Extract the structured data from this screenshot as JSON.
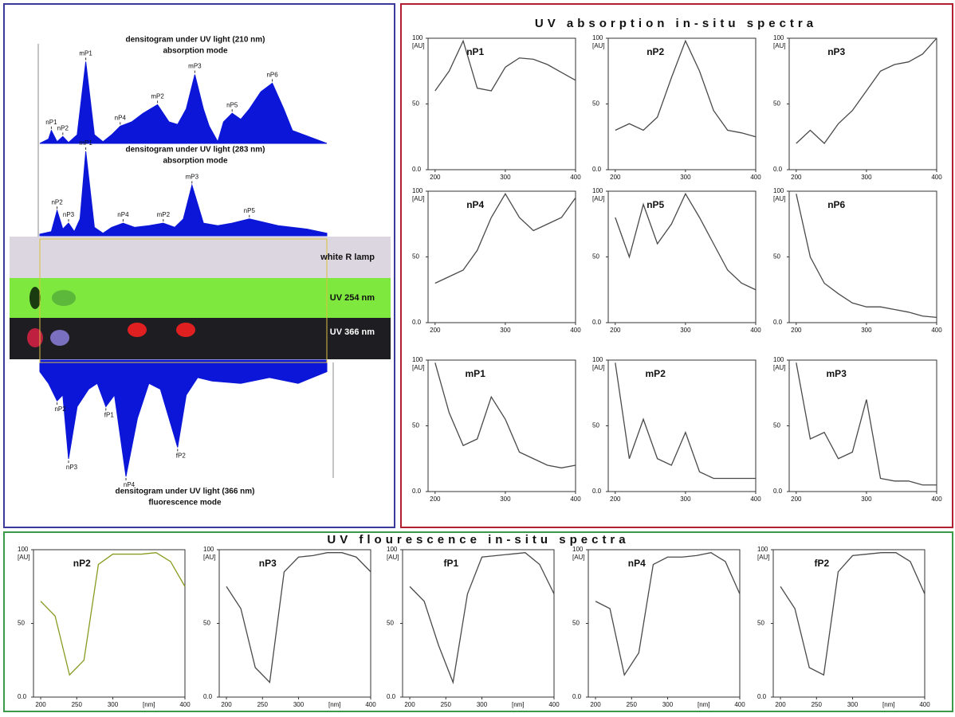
{
  "section_titles": {
    "absorption": "UV absorption in-situ spectra",
    "fluorescence": "UV flourescence in-situ spectra"
  },
  "plate": {
    "rows": [
      "white R lamp",
      "UV 254 nm",
      "UV 366 nm"
    ]
  },
  "chart_data": [
    {
      "type": "area",
      "title": "densitogram under UV light (210 nm)",
      "subtitle": "absorption mode",
      "color": "#0b16d8",
      "direction": "up",
      "xlim": [
        0,
        100
      ],
      "ylim": [
        0,
        100
      ],
      "x": [
        0,
        3,
        4,
        6,
        8,
        10,
        13,
        16,
        19,
        22,
        25,
        28,
        32,
        36,
        41,
        45,
        48,
        51,
        54,
        57,
        59,
        62,
        64,
        67,
        70,
        73,
        77,
        81,
        85,
        88,
        92,
        96,
        100
      ],
      "values": [
        0,
        5,
        15,
        2,
        8,
        1,
        10,
        95,
        10,
        2,
        10,
        20,
        25,
        35,
        45,
        25,
        22,
        40,
        80,
        40,
        20,
        2,
        25,
        35,
        28,
        40,
        60,
        70,
        40,
        15,
        10,
        5,
        0
      ],
      "peaks": [
        {
          "label": "nP1",
          "x": 4
        },
        {
          "label": "nP2",
          "x": 8
        },
        {
          "label": "mP1",
          "x": 16
        },
        {
          "label": "nP4",
          "x": 28
        },
        {
          "label": "mP2",
          "x": 41
        },
        {
          "label": "mP3",
          "x": 54
        },
        {
          "label": "nP5",
          "x": 67
        },
        {
          "label": "nP6",
          "x": 81
        }
      ]
    },
    {
      "type": "area",
      "title": "densitogram under UV light (283 nm)",
      "subtitle": "absorption mode",
      "color": "#0b16d8",
      "direction": "up",
      "xlim": [
        0,
        100
      ],
      "ylim": [
        0,
        100
      ],
      "x": [
        0,
        4,
        6,
        8,
        10,
        12,
        14,
        16,
        19,
        22,
        25,
        29,
        33,
        38,
        43,
        47,
        50,
        53,
        57,
        62,
        67,
        73,
        78,
        83,
        88,
        93,
        100
      ],
      "values": [
        2,
        5,
        30,
        8,
        15,
        5,
        20,
        100,
        10,
        3,
        10,
        15,
        10,
        12,
        15,
        10,
        20,
        60,
        15,
        12,
        15,
        20,
        16,
        12,
        10,
        8,
        3
      ],
      "peaks": [
        {
          "label": "nP2",
          "x": 6
        },
        {
          "label": "nP3",
          "x": 10
        },
        {
          "label": "mP1",
          "x": 16
        },
        {
          "label": "nP4",
          "x": 29
        },
        {
          "label": "mP2",
          "x": 43
        },
        {
          "label": "mP3",
          "x": 53
        },
        {
          "label": "nP5",
          "x": 73
        }
      ]
    },
    {
      "type": "area",
      "title": "densitogram under UV light (366 nm)",
      "subtitle": "fluorescence mode",
      "color": "#0b16d8",
      "direction": "down",
      "xlim": [
        0,
        100
      ],
      "ylim": [
        0,
        100
      ],
      "x": [
        0,
        3,
        6,
        8,
        10,
        13,
        17,
        20,
        23,
        26,
        30,
        34,
        38,
        42,
        45,
        48,
        51,
        55,
        60,
        70,
        80,
        90,
        100
      ],
      "values": [
        10,
        20,
        35,
        30,
        85,
        40,
        25,
        20,
        40,
        30,
        100,
        50,
        20,
        25,
        50,
        75,
        30,
        15,
        18,
        20,
        15,
        20,
        10
      ],
      "peaks": [
        {
          "label": "nP2",
          "x": 6
        },
        {
          "label": "nP3",
          "x": 10
        },
        {
          "label": "fP1",
          "x": 23
        },
        {
          "label": "nP4",
          "x": 30
        },
        {
          "label": "fP2",
          "x": 48
        }
      ]
    },
    {
      "type": "line",
      "title": "nP1",
      "y_label": "[AU]",
      "xlim": [
        190,
        400
      ],
      "xticks": [
        200,
        300,
        400
      ],
      "ylim": [
        0,
        100
      ],
      "yticks": [
        {
          "value": 0,
          "label": "0.0"
        },
        50,
        100
      ],
      "x": [
        200,
        220,
        240,
        260,
        280,
        300,
        320,
        340,
        360,
        380,
        400
      ],
      "series": [
        {
          "color": "#4a4a4a",
          "values": [
            60,
            75,
            98,
            62,
            60,
            78,
            85,
            84,
            80,
            74,
            68
          ]
        }
      ]
    },
    {
      "type": "line",
      "title": "nP2",
      "y_label": "[AU]",
      "xlim": [
        190,
        400
      ],
      "xticks": [
        200,
        300,
        400
      ],
      "ylim": [
        0,
        100
      ],
      "yticks": [
        {
          "value": 0,
          "label": "0.0"
        },
        50,
        100
      ],
      "x": [
        200,
        220,
        240,
        260,
        280,
        300,
        320,
        340,
        360,
        380,
        400
      ],
      "series": [
        {
          "color": "#4a4a4a",
          "values": [
            30,
            35,
            30,
            40,
            70,
            98,
            75,
            45,
            30,
            28,
            25
          ]
        }
      ]
    },
    {
      "type": "line",
      "title": "nP3",
      "y_label": "[AU]",
      "xlim": [
        190,
        400
      ],
      "xticks": [
        200,
        300,
        400
      ],
      "ylim": [
        0,
        100
      ],
      "yticks": [
        {
          "value": 0,
          "label": "0.0"
        },
        50,
        100
      ],
      "x": [
        200,
        220,
        240,
        260,
        280,
        300,
        320,
        340,
        360,
        380,
        400
      ],
      "series": [
        {
          "color": "#4a4a4a",
          "values": [
            20,
            30,
            20,
            35,
            45,
            60,
            75,
            80,
            82,
            88,
            100
          ]
        }
      ]
    },
    {
      "type": "line",
      "title": "nP4",
      "y_label": "[AU]",
      "xlim": [
        190,
        400
      ],
      "xticks": [
        200,
        300,
        400
      ],
      "ylim": [
        0,
        100
      ],
      "yticks": [
        {
          "value": 0,
          "label": "0.0"
        },
        50,
        100
      ],
      "x": [
        200,
        220,
        240,
        260,
        280,
        300,
        320,
        340,
        360,
        380,
        400
      ],
      "series": [
        {
          "color": "#4a4a4a",
          "values": [
            30,
            35,
            40,
            55,
            80,
            98,
            80,
            70,
            75,
            80,
            95
          ]
        }
      ]
    },
    {
      "type": "line",
      "title": "nP5",
      "y_label": "[AU]",
      "xlim": [
        190,
        400
      ],
      "xticks": [
        200,
        300,
        400
      ],
      "ylim": [
        0,
        100
      ],
      "yticks": [
        {
          "value": 0,
          "label": "0.0"
        },
        50,
        100
      ],
      "x": [
        200,
        220,
        240,
        260,
        280,
        300,
        320,
        340,
        360,
        380,
        400
      ],
      "series": [
        {
          "color": "#4a4a4a",
          "values": [
            80,
            50,
            90,
            60,
            75,
            98,
            80,
            60,
            40,
            30,
            25
          ]
        }
      ]
    },
    {
      "type": "line",
      "title": "nP6",
      "y_label": "[AU]",
      "xlim": [
        190,
        400
      ],
      "xticks": [
        200,
        300,
        400
      ],
      "ylim": [
        0,
        100
      ],
      "yticks": [
        {
          "value": 0,
          "label": "0.0"
        },
        50,
        100
      ],
      "x": [
        200,
        220,
        240,
        260,
        280,
        300,
        320,
        340,
        360,
        380,
        400
      ],
      "series": [
        {
          "color": "#4a4a4a",
          "values": [
            98,
            50,
            30,
            22,
            15,
            12,
            12,
            10,
            8,
            5,
            4
          ]
        }
      ]
    },
    {
      "type": "line",
      "title": "mP1",
      "y_label": "[AU]",
      "xlim": [
        190,
        400
      ],
      "xticks": [
        200,
        300,
        400
      ],
      "ylim": [
        0,
        100
      ],
      "yticks": [
        {
          "value": 0,
          "label": "0.0"
        },
        50,
        100
      ],
      "x": [
        200,
        220,
        240,
        260,
        280,
        300,
        320,
        340,
        360,
        380,
        400
      ],
      "series": [
        {
          "color": "#4a4a4a",
          "values": [
            98,
            60,
            35,
            40,
            72,
            55,
            30,
            25,
            20,
            18,
            20
          ]
        }
      ]
    },
    {
      "type": "line",
      "title": "mP2",
      "y_label": "[AU]",
      "xlim": [
        190,
        400
      ],
      "xticks": [
        200,
        300,
        400
      ],
      "ylim": [
        0,
        100
      ],
      "yticks": [
        {
          "value": 0,
          "label": "0.0"
        },
        50,
        100
      ],
      "x": [
        200,
        220,
        240,
        260,
        280,
        300,
        320,
        340,
        360,
        380,
        400
      ],
      "series": [
        {
          "color": "#4a4a4a",
          "values": [
            98,
            25,
            55,
            25,
            20,
            45,
            15,
            10,
            10,
            10,
            10
          ]
        }
      ]
    },
    {
      "type": "line",
      "title": "mP3",
      "y_label": "[AU]",
      "xlim": [
        190,
        400
      ],
      "xticks": [
        200,
        300,
        400
      ],
      "ylim": [
        0,
        100
      ],
      "yticks": [
        {
          "value": 0,
          "label": "0.0"
        },
        50,
        100
      ],
      "x": [
        200,
        220,
        240,
        260,
        280,
        300,
        320,
        340,
        360,
        380,
        400
      ],
      "series": [
        {
          "color": "#4a4a4a",
          "values": [
            98,
            40,
            45,
            25,
            30,
            70,
            10,
            8,
            8,
            5,
            5
          ]
        }
      ]
    },
    {
      "type": "line",
      "title": "nP2",
      "y_label": "[AU]",
      "x_label": "[nm]",
      "xlim": [
        190,
        400
      ],
      "xticks": [
        200,
        250,
        300,
        400
      ],
      "ylim": [
        0,
        100
      ],
      "yticks": [
        {
          "value": 0,
          "label": "0.0"
        },
        50,
        100
      ],
      "x": [
        200,
        220,
        240,
        260,
        280,
        300,
        320,
        340,
        360,
        380,
        400
      ],
      "series": [
        {
          "color": "#8a9a20",
          "values": [
            65,
            55,
            15,
            25,
            90,
            97,
            97,
            97,
            98,
            92,
            75
          ]
        }
      ]
    },
    {
      "type": "line",
      "title": "nP3",
      "y_label": "[AU]",
      "x_label": "[nm]",
      "xlim": [
        190,
        400
      ],
      "xticks": [
        200,
        250,
        300,
        400
      ],
      "ylim": [
        0,
        100
      ],
      "yticks": [
        {
          "value": 0,
          "label": "0.0"
        },
        50,
        100
      ],
      "x": [
        200,
        220,
        240,
        260,
        280,
        300,
        320,
        340,
        360,
        380,
        400
      ],
      "series": [
        {
          "color": "#4a4a4a",
          "values": [
            75,
            60,
            20,
            10,
            85,
            95,
            96,
            98,
            98,
            95,
            85
          ]
        }
      ]
    },
    {
      "type": "line",
      "title": "fP1",
      "y_label": "[AU]",
      "x_label": "[nm]",
      "xlim": [
        190,
        400
      ],
      "xticks": [
        200,
        250,
        300,
        400
      ],
      "ylim": [
        0,
        100
      ],
      "yticks": [
        {
          "value": 0,
          "label": "0.0"
        },
        50,
        100
      ],
      "x": [
        200,
        220,
        240,
        260,
        280,
        300,
        320,
        340,
        360,
        380,
        400
      ],
      "series": [
        {
          "color": "#4a4a4a",
          "values": [
            75,
            65,
            35,
            10,
            70,
            95,
            96,
            97,
            98,
            90,
            70
          ]
        }
      ]
    },
    {
      "type": "line",
      "title": "nP4",
      "y_label": "[AU]",
      "x_label": "[nm]",
      "xlim": [
        190,
        400
      ],
      "xticks": [
        200,
        250,
        300,
        400
      ],
      "ylim": [
        0,
        100
      ],
      "yticks": [
        {
          "value": 0,
          "label": "0.0"
        },
        50,
        100
      ],
      "x": [
        200,
        220,
        240,
        260,
        280,
        300,
        320,
        340,
        360,
        380,
        400
      ],
      "series": [
        {
          "color": "#4a4a4a",
          "values": [
            65,
            60,
            15,
            30,
            90,
            95,
            95,
            96,
            98,
            92,
            70
          ]
        }
      ]
    },
    {
      "type": "line",
      "title": "fP2",
      "y_label": "[AU]",
      "x_label": "[nm]",
      "xlim": [
        190,
        400
      ],
      "xticks": [
        200,
        250,
        300,
        400
      ],
      "ylim": [
        0,
        100
      ],
      "yticks": [
        {
          "value": 0,
          "label": "0.0"
        },
        50,
        100
      ],
      "x": [
        200,
        220,
        240,
        260,
        280,
        300,
        320,
        340,
        360,
        380,
        400
      ],
      "series": [
        {
          "color": "#4a4a4a",
          "values": [
            75,
            60,
            20,
            15,
            85,
            96,
            97,
            98,
            98,
            92,
            70
          ]
        }
      ]
    }
  ]
}
